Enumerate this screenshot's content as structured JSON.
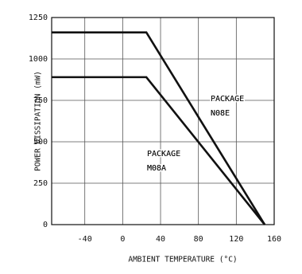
{
  "chart_data": {
    "type": "line",
    "xlabel": "AMBIENT TEMPERATURE (°C)",
    "ylabel": "POWER DISSIPATION (mW)",
    "x": [
      -75,
      25,
      150
    ],
    "series": [
      {
        "label": [
          "PACKAGE",
          "N08E"
        ],
        "color": "#111111",
        "values": [
          1160,
          1160,
          0
        ]
      },
      {
        "label": [
          "PACKAGE",
          "M08A"
        ],
        "color": "#111111",
        "values": [
          890,
          890,
          0
        ]
      }
    ],
    "xlim": [
      -75,
      160
    ],
    "xticks": [
      -40,
      0,
      40,
      80,
      120,
      160
    ],
    "ylim": [
      0,
      1250
    ],
    "yticks": [
      0,
      250,
      500,
      750,
      1000,
      1250
    ],
    "grid": true
  }
}
